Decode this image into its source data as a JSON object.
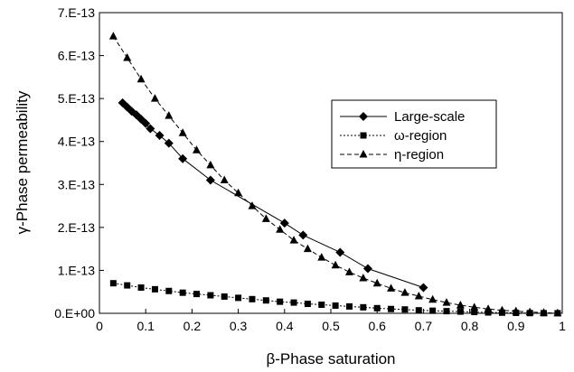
{
  "chart_data": {
    "type": "line",
    "title": "",
    "xlabel": "β-Phase saturation",
    "ylabel": "γ-Phase permeability",
    "xlim": [
      0,
      1
    ],
    "ylim": [
      0,
      7e-13
    ],
    "x_ticks": [
      0,
      0.1,
      0.2,
      0.3,
      0.4,
      0.5,
      0.6,
      0.7,
      0.8,
      0.9,
      1
    ],
    "x_tick_labels": [
      "0",
      "0.1",
      "0.2",
      "0.3",
      "0.4",
      "0.5",
      "0.6",
      "0.7",
      "0.8",
      "0.9",
      "1"
    ],
    "y_ticks": [
      0,
      1e-13,
      2e-13,
      3e-13,
      4e-13,
      5e-13,
      6e-13,
      7e-13
    ],
    "y_tick_labels": [
      "0.E+00",
      "1.E-13",
      "2.E-13",
      "3.E-13",
      "4.E-13",
      "5.E-13",
      "6.E-13",
      "7.E-13"
    ],
    "grid": false,
    "legend_position": "right",
    "series": [
      {
        "name": "Large-scale",
        "marker": "diamond",
        "line": "solid",
        "x": [
          0.05,
          0.06,
          0.07,
          0.08,
          0.09,
          0.1,
          0.11,
          0.13,
          0.15,
          0.18,
          0.24,
          0.4,
          0.44,
          0.52,
          0.58,
          0.7
        ],
        "y": [
          4.9e-13,
          4.8e-13,
          4.7e-13,
          4.62e-13,
          4.52e-13,
          4.42e-13,
          4.3e-13,
          4.14e-13,
          3.96e-13,
          3.6e-13,
          3.1e-13,
          2.1e-13,
          1.82e-13,
          1.42e-13,
          1.04e-13,
          6e-14
        ]
      },
      {
        "name": "ω-region",
        "marker": "square",
        "line": "dotted",
        "x": [
          0.03,
          0.06,
          0.09,
          0.12,
          0.15,
          0.18,
          0.21,
          0.24,
          0.27,
          0.3,
          0.33,
          0.36,
          0.39,
          0.42,
          0.45,
          0.48,
          0.51,
          0.54,
          0.57,
          0.6,
          0.63,
          0.66,
          0.69,
          0.72,
          0.75,
          0.78,
          0.81,
          0.84,
          0.87,
          0.9,
          0.93,
          0.96,
          0.99
        ],
        "y": [
          7e-14,
          6.5e-14,
          6e-14,
          5.6e-14,
          5.2e-14,
          4.8e-14,
          4.5e-14,
          4.2e-14,
          3.9e-14,
          3.6e-14,
          3.3e-14,
          3e-14,
          2.7e-14,
          2.5e-14,
          2.2e-14,
          2e-14,
          1.8e-14,
          1.6e-14,
          1.4e-14,
          1.2e-14,
          1e-14,
          9e-15,
          7e-15,
          6e-15,
          5e-15,
          4e-15,
          3e-15,
          2e-15,
          1.5e-15,
          1e-15,
          5e-16,
          3e-16,
          2e-16
        ]
      },
      {
        "name": "η-region",
        "marker": "triangle",
        "line": "dashed",
        "x": [
          0.03,
          0.06,
          0.09,
          0.12,
          0.15,
          0.18,
          0.21,
          0.24,
          0.27,
          0.3,
          0.33,
          0.36,
          0.39,
          0.42,
          0.45,
          0.48,
          0.51,
          0.54,
          0.57,
          0.6,
          0.63,
          0.66,
          0.69,
          0.72,
          0.75,
          0.78,
          0.81,
          0.84,
          0.87,
          0.9,
          0.93,
          0.96,
          0.99
        ],
        "y": [
          6.45e-13,
          5.95e-13,
          5.45e-13,
          5e-13,
          4.6e-13,
          4.2e-13,
          3.8e-13,
          3.45e-13,
          3.1e-13,
          2.8e-13,
          2.5e-13,
          2.2e-13,
          1.95e-13,
          1.7e-13,
          1.5e-13,
          1.3e-13,
          1.12e-13,
          9.6e-14,
          8.2e-14,
          7e-14,
          5.8e-14,
          4.8e-14,
          4e-14,
          3.2e-14,
          2.5e-14,
          1.9e-14,
          1.4e-14,
          1e-14,
          7e-15,
          5e-15,
          3e-15,
          1.5e-15,
          5e-16
        ]
      }
    ]
  }
}
